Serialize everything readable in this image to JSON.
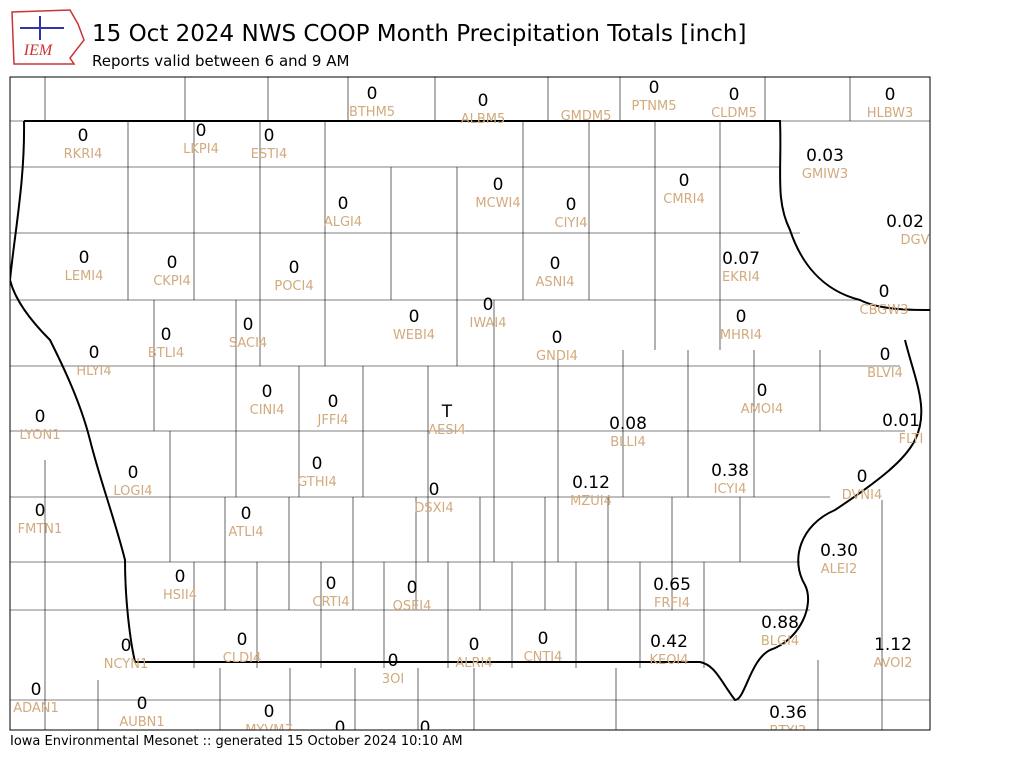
{
  "header": {
    "logo": "IEM",
    "title": "15 Oct 2024 NWS COOP Month Precipitation Totals [inch]",
    "subtitle": "Reports valid between 6 and 9 AM"
  },
  "footer": "Iowa Environmental Mesonet :: generated 15 October 2024 10:10 AM",
  "stations": [
    {
      "value": "0",
      "id": "BTHM5"
    },
    {
      "value": "0",
      "id": "ALBM5"
    },
    {
      "id": "GMDM5"
    },
    {
      "value": "0",
      "id": "PTNM5"
    },
    {
      "value": "0",
      "id": "CLDM5"
    },
    {
      "value": "0",
      "id": "HLBW3"
    },
    {
      "value": "0",
      "id": "RKRI4"
    },
    {
      "value": "0",
      "id": "LKPI4"
    },
    {
      "value": "0",
      "id": "ESTI4"
    },
    {
      "value": "0.03",
      "id": "GMIW3"
    },
    {
      "value": "0",
      "id": "ALGI4"
    },
    {
      "value": "0",
      "id": "MCWI4"
    },
    {
      "value": "0",
      "id": "CIYI4"
    },
    {
      "value": "0",
      "id": "CMRI4"
    },
    {
      "value": "0.02",
      "id": "DGV"
    },
    {
      "value": "0",
      "id": "LEMI4"
    },
    {
      "value": "0",
      "id": "CKPI4"
    },
    {
      "value": "0",
      "id": "POCI4"
    },
    {
      "value": "0",
      "id": "ASNI4"
    },
    {
      "value": "0.07",
      "id": "EKRI4"
    },
    {
      "value": "0",
      "id": "CBGW3"
    },
    {
      "value": "0",
      "id": "IWAI4"
    },
    {
      "value": "0",
      "id": "WEBI4"
    },
    {
      "value": "0",
      "id": "SACI4"
    },
    {
      "value": "0",
      "id": "MHRI4"
    },
    {
      "value": "0",
      "id": "BTLI4"
    },
    {
      "value": "0",
      "id": "GNDI4"
    },
    {
      "value": "0",
      "id": "HLYI4"
    },
    {
      "value": "0",
      "id": "BLVI4"
    },
    {
      "value": "0",
      "id": "AMOI4"
    },
    {
      "value": "0",
      "id": "CINI4"
    },
    {
      "value": "0",
      "id": "JFFI4"
    },
    {
      "value": "T",
      "id": "AESI4"
    },
    {
      "value": "0.08",
      "id": "BLLI4"
    },
    {
      "value": "0.01",
      "id": "FLTI"
    },
    {
      "value": "0",
      "id": "LYON1"
    },
    {
      "value": "0.38",
      "id": "ICYI4"
    },
    {
      "value": "0",
      "id": "GTHI4"
    },
    {
      "value": "0",
      "id": "LOGI4"
    },
    {
      "value": "0",
      "id": "DVNI4"
    },
    {
      "value": "0.12",
      "id": "MZUI4"
    },
    {
      "value": "0",
      "id": "DSXI4"
    },
    {
      "value": "0",
      "id": "FMTN1"
    },
    {
      "value": "0",
      "id": "ATLI4"
    },
    {
      "value": "0.30",
      "id": "ALEI2"
    },
    {
      "value": "0",
      "id": "HSII4"
    },
    {
      "value": "0",
      "id": "CRTI4"
    },
    {
      "value": "0",
      "id": "OSEI4"
    },
    {
      "value": "0.65",
      "id": "FRFI4"
    },
    {
      "value": "0.88",
      "id": "BLGI4"
    },
    {
      "value": "0",
      "id": "CLDI4"
    },
    {
      "value": "0",
      "id": "ALRI4"
    },
    {
      "value": "0",
      "id": "CNTI4"
    },
    {
      "value": "0.42",
      "id": "KEOI4"
    },
    {
      "value": "1.12",
      "id": "AVOI2"
    },
    {
      "value": "0",
      "id": "NCYN1"
    },
    {
      "value": "0",
      "id": "3OI"
    },
    {
      "value": "0",
      "id": "ADAN1"
    },
    {
      "value": "0",
      "id": "AUBN1"
    },
    {
      "value": "0",
      "id": "MYVM7"
    },
    {
      "value": "0.36",
      "id": "BTYI2"
    },
    {
      "value": "0"
    },
    {
      "value": "0"
    }
  ]
}
